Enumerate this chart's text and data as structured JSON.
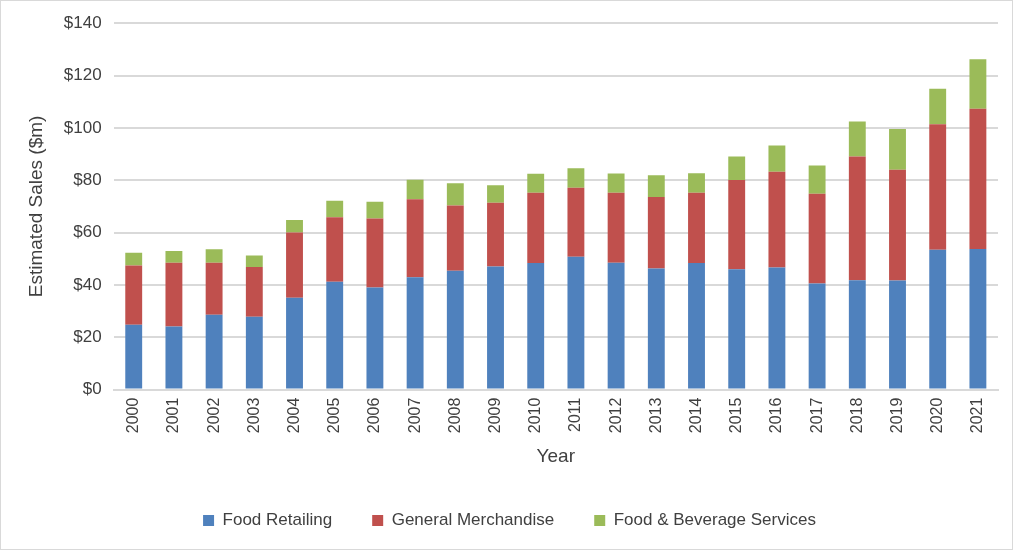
{
  "chart_data": {
    "type": "bar",
    "stacked": true,
    "xlabel": "Year",
    "ylabel": "Estimated Sales ($m)",
    "categories": [
      "2000",
      "2001",
      "2002",
      "2003",
      "2004",
      "2005",
      "2006",
      "2007",
      "2008",
      "2009",
      "2010",
      "2011",
      "2012",
      "2013",
      "2014",
      "2015",
      "2016",
      "2017",
      "2018",
      "2019",
      "2020",
      "2021"
    ],
    "series": [
      {
        "name": "Food Retailing",
        "color": "#4f81bd",
        "values": [
          24.8,
          24.1,
          28.6,
          27.8,
          35.1,
          41.2,
          39.0,
          42.9,
          45.4,
          47.0,
          48.4,
          50.8,
          48.5,
          46.3,
          48.4,
          46.0,
          46.7,
          40.5,
          41.8,
          41.7,
          53.4,
          53.7
        ]
      },
      {
        "name": "General Merchandise",
        "color": "#c0504d",
        "values": [
          22.6,
          24.4,
          19.9,
          19.0,
          24.9,
          24.7,
          26.4,
          29.8,
          24.9,
          24.4,
          26.8,
          26.3,
          26.7,
          27.3,
          26.8,
          34.1,
          36.5,
          34.3,
          47.3,
          42.3,
          48.0,
          53.6
        ]
      },
      {
        "name": "Food & Beverage Services",
        "color": "#9bbb59",
        "values": [
          4.9,
          4.5,
          5.1,
          4.4,
          4.8,
          6.3,
          6.4,
          7.5,
          8.5,
          6.7,
          7.3,
          7.5,
          7.4,
          8.3,
          7.5,
          9.0,
          10.1,
          10.8,
          13.3,
          15.6,
          13.6,
          18.9
        ]
      }
    ],
    "ylim": [
      0,
      140
    ],
    "yticks": [
      {
        "value": 0,
        "label": "$0"
      },
      {
        "value": 20,
        "label": "$20"
      },
      {
        "value": 40,
        "label": "$40"
      },
      {
        "value": 60,
        "label": "$60"
      },
      {
        "value": 80,
        "label": "$80"
      },
      {
        "value": 100,
        "label": "$100"
      },
      {
        "value": 120,
        "label": "$120"
      },
      {
        "value": 140,
        "label": "$140"
      }
    ],
    "grid": "y",
    "legend": "bottom"
  }
}
